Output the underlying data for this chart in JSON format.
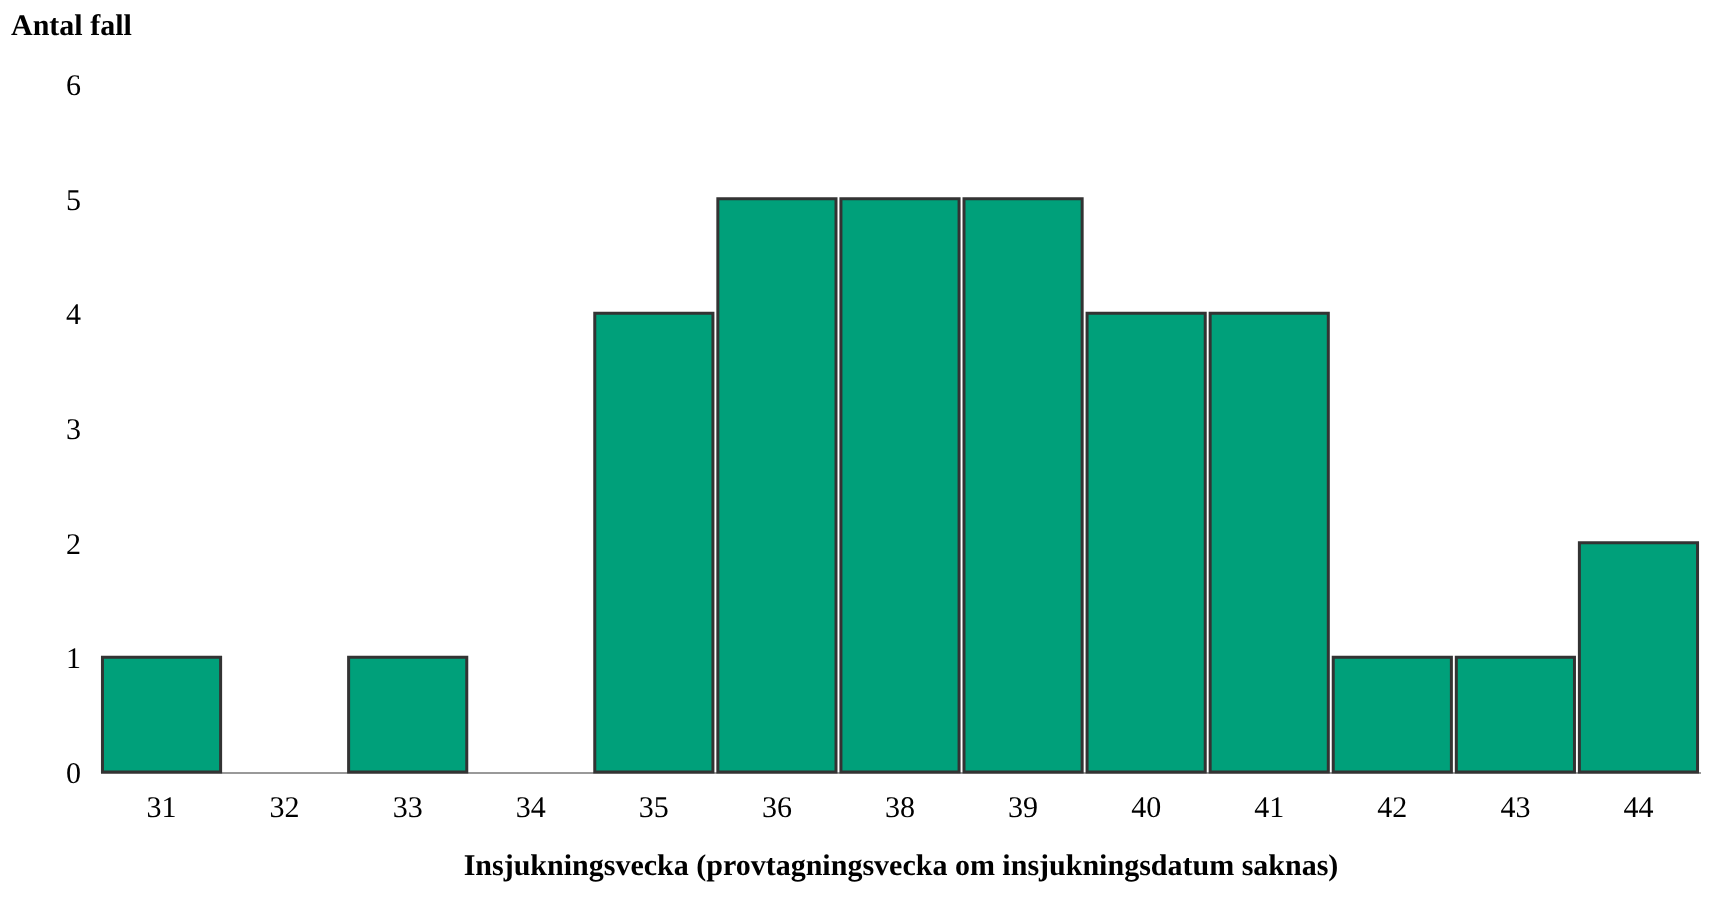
{
  "chart_data": {
    "type": "bar",
    "ylabel": "Antal fall",
    "xlabel": "Insjukningsvecka (provtagningsvecka om insjukningsdatum saknas)",
    "categories": [
      "31",
      "32",
      "33",
      "34",
      "35",
      "36",
      "38",
      "39",
      "40",
      "41",
      "42",
      "43",
      "44"
    ],
    "values": [
      1,
      0,
      1,
      0,
      4,
      5,
      5,
      5,
      4,
      4,
      1,
      1,
      2
    ],
    "color": "#00a07a",
    "ylim": [
      0,
      6
    ],
    "yticks": [
      0,
      1,
      2,
      3,
      4,
      5,
      6
    ],
    "grid": false
  }
}
